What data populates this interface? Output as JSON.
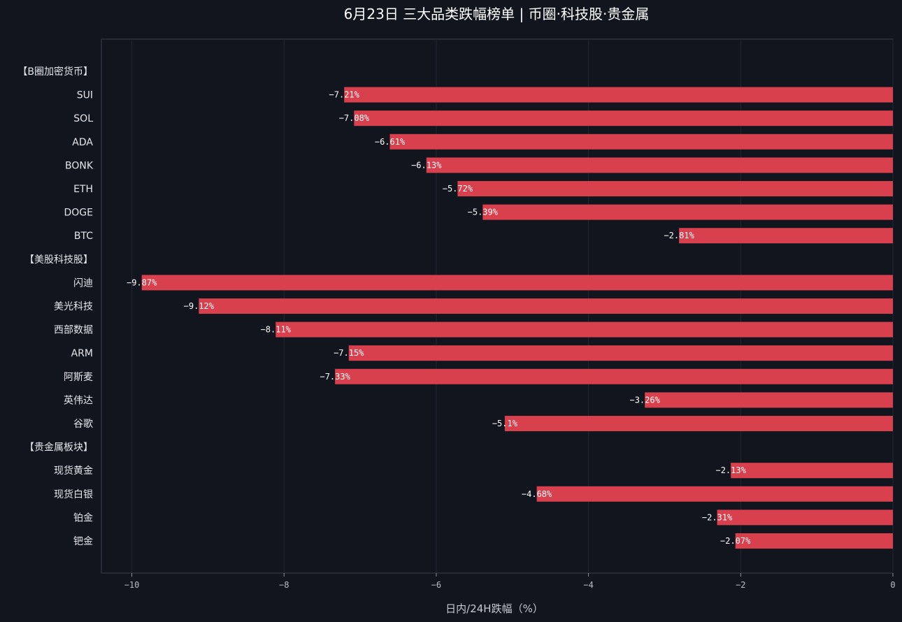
{
  "chart_data": {
    "type": "bar",
    "orientation": "horizontal",
    "title": "6月23日 三大品类跌幅榜单 | 币圈·科技股·贵金属",
    "xlabel": "日内/24H跌幅（%）",
    "ylabel": "",
    "xlim": [
      -10.4,
      0
    ],
    "xticks": [
      -10,
      -8,
      -6,
      -4,
      -2,
      0
    ],
    "xtick_labels": [
      "−10",
      "−8",
      "−6",
      "−4",
      "−2",
      "0"
    ],
    "grid": true,
    "categories": [
      "【B圈加密货币】",
      "SUI",
      "SOL",
      "ADA",
      "BONK",
      "ETH",
      "DOGE",
      "BTC",
      "【美股科技股】",
      "闪迪",
      "美光科技",
      "西部数据",
      "ARM",
      "阿斯麦",
      "英伟达",
      "谷歌",
      "【贵金属板块】",
      "现货黄金",
      "现货白银",
      "铂金",
      "钯金"
    ],
    "values": [
      null,
      -7.21,
      -7.08,
      -6.61,
      -6.13,
      -5.72,
      -5.39,
      -2.81,
      null,
      -9.87,
      -9.12,
      -8.11,
      -7.15,
      -7.33,
      -3.26,
      -5.1,
      null,
      -2.13,
      -4.68,
      -2.31,
      -2.07
    ],
    "value_labels": [
      "",
      "−7.21%",
      "−7.08%",
      "−6.61%",
      "−6.13%",
      "−5.72%",
      "−5.39%",
      "−2.81%",
      "",
      "−9.87%",
      "−9.12%",
      "−8.11%",
      "−7.15%",
      "−7.33%",
      "−3.26%",
      "−5.1%",
      "",
      "−2.13%",
      "−4.68%",
      "−2.31%",
      "−2.07%"
    ],
    "bar_color": "#d9404e",
    "background_color": "#11151e"
  }
}
